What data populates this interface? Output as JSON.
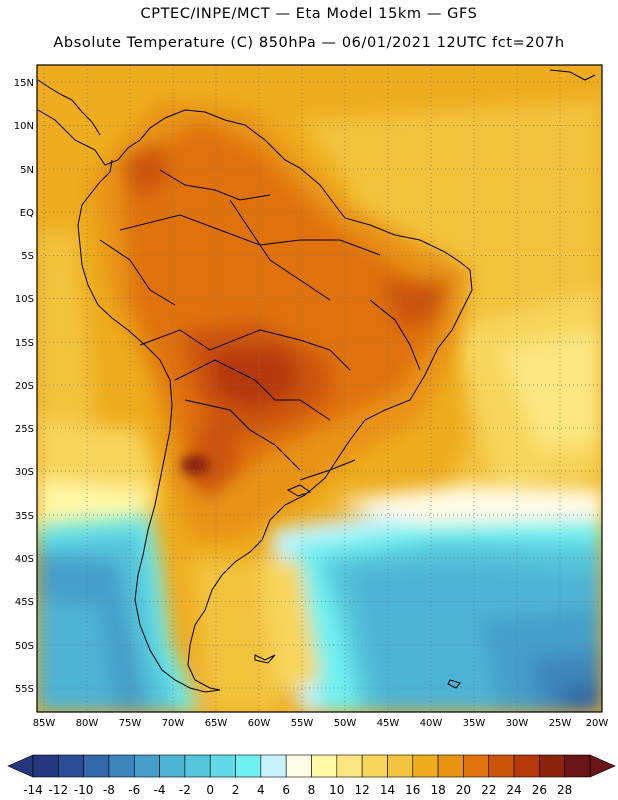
{
  "header": {
    "line1": "CPTEC/INPE/MCT —  Eta Model 15km — GFS",
    "line2": "Absolute Temperature (C) 850hPa — 06/01/2021 12UTC fct=207h"
  },
  "axes": {
    "lat_labels": [
      "15N",
      "10N",
      "5N",
      "EQ",
      "5S",
      "10S",
      "15S",
      "20S",
      "25S",
      "30S",
      "35S",
      "40S",
      "45S",
      "50S",
      "55S"
    ],
    "lon_labels": [
      "85W",
      "80W",
      "75W",
      "70W",
      "65W",
      "60W",
      "55W",
      "50W",
      "45W",
      "40W",
      "35W",
      "30W",
      "25W",
      "20W"
    ]
  },
  "colorbar": {
    "labels": [
      "-14",
      "-12",
      "-10",
      "-8",
      "-6",
      "-4",
      "-2",
      "0",
      "2",
      "4",
      "6",
      "8",
      "10",
      "12",
      "14",
      "16",
      "18",
      "20",
      "22",
      "24",
      "26",
      "28"
    ],
    "colors": [
      "#24377f",
      "#2a4e96",
      "#3369ab",
      "#3d86bd",
      "#459fca",
      "#4db3d4",
      "#54c6dc",
      "#61d9e6",
      "#70f0f0",
      "#c8f2fb",
      "#fffbe6",
      "#fff7a6",
      "#fbe680",
      "#f8d65c",
      "#f2c33e",
      "#eeac1e",
      "#e99312",
      "#e0720b",
      "#cc5409",
      "#b6390a",
      "#8c230d",
      "#6a1518"
    ]
  }
}
